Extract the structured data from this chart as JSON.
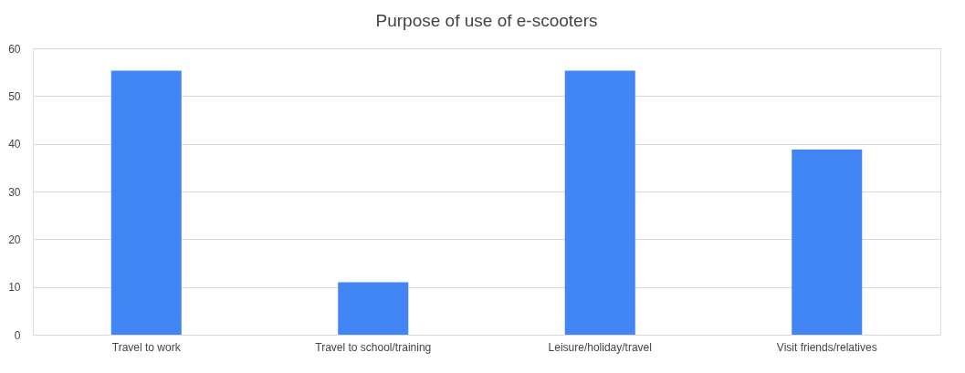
{
  "chart_data": {
    "type": "bar",
    "title": "Purpose of use of e-scooters",
    "categories": [
      "Travel to work",
      "Travel to school/training",
      "Leisure/holiday/travel",
      "Visit friends/relatives"
    ],
    "values": [
      55.3,
      11.0,
      55.3,
      38.8
    ],
    "color": "#4285f4",
    "ylim": [
      0,
      60
    ],
    "yticks": [
      0,
      10,
      20,
      30,
      40,
      50,
      60
    ],
    "grid": "y"
  }
}
